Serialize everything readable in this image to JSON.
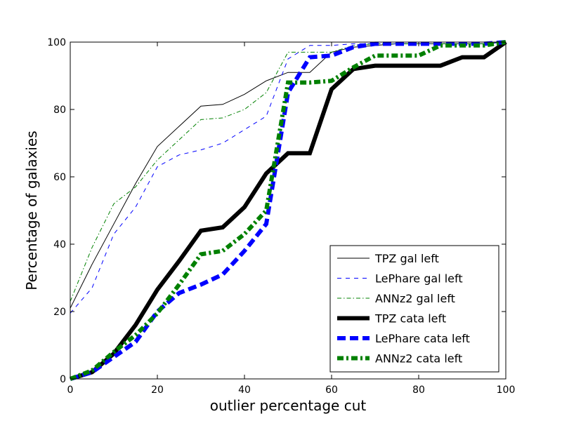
{
  "chart_data": {
    "type": "line",
    "title": "",
    "xlabel": "outlier percentage cut",
    "ylabel": "Percentage of galaxies",
    "xlim": [
      0,
      100
    ],
    "ylim": [
      0,
      100
    ],
    "xticks": [
      0,
      20,
      40,
      60,
      80,
      100
    ],
    "yticks": [
      0,
      20,
      40,
      60,
      80,
      100
    ],
    "grid": false,
    "legend_position": "bottom-right",
    "series": [
      {
        "name": "TPZ gal left",
        "color": "#000000",
        "style": "solid-thin",
        "x": [
          0,
          5,
          10,
          15,
          20,
          25,
          30,
          35,
          40,
          45,
          50,
          55,
          60,
          65,
          70,
          75,
          80,
          85,
          90,
          95,
          100
        ],
        "y": [
          21,
          34,
          46,
          58,
          69,
          75,
          81,
          81.5,
          84.5,
          88.5,
          91,
          91,
          97,
          98.5,
          99,
          99.5,
          99.5,
          99.5,
          99.5,
          99.5,
          100
        ]
      },
      {
        "name": "LePhare gal left",
        "color": "#0000ff",
        "style": "dashed-thin",
        "x": [
          0,
          5,
          10,
          15,
          20,
          25,
          30,
          35,
          40,
          45,
          50,
          55,
          60,
          65,
          70,
          75,
          80,
          85,
          90,
          95,
          100
        ],
        "y": [
          19.5,
          27,
          43,
          51,
          63,
          66.5,
          68,
          70,
          74,
          78,
          95,
          99,
          99,
          99.5,
          99.5,
          99.5,
          99.5,
          99.5,
          99.5,
          99.5,
          100
        ]
      },
      {
        "name": "ANNz2 gal left",
        "color": "#008000",
        "style": "dashdot-thin",
        "x": [
          0,
          5,
          10,
          15,
          20,
          25,
          30,
          35,
          40,
          45,
          50,
          55,
          60,
          65,
          70,
          75,
          80,
          85,
          90,
          95,
          100
        ],
        "y": [
          23,
          39,
          52,
          57,
          65,
          71,
          77,
          77.5,
          80,
          85,
          97,
          97,
          97,
          99,
          99.5,
          99.5,
          99.5,
          99.5,
          99.5,
          99.5,
          100
        ]
      },
      {
        "name": "TPZ cata left",
        "color": "#000000",
        "style": "solid-thick",
        "x": [
          0,
          5,
          10,
          15,
          20,
          25,
          30,
          35,
          40,
          45,
          50,
          55,
          60,
          65,
          70,
          75,
          80,
          85,
          90,
          95,
          100
        ],
        "y": [
          0,
          2,
          7.5,
          16,
          26.5,
          35,
          44,
          45,
          51,
          61,
          67,
          67,
          86,
          92,
          93,
          93,
          93,
          93,
          95.5,
          95.5,
          100
        ]
      },
      {
        "name": "LePhare cata left",
        "color": "#0000ff",
        "style": "dashed-thick",
        "x": [
          0,
          5,
          10,
          15,
          20,
          25,
          30,
          35,
          40,
          45,
          50,
          55,
          60,
          65,
          70,
          75,
          80,
          85,
          90,
          95,
          100
        ],
        "y": [
          0,
          2,
          6.5,
          11,
          20,
          25.5,
          28,
          31,
          38,
          46,
          85,
          95.5,
          96,
          98.5,
          99.5,
          99.5,
          99.5,
          99.5,
          99.5,
          99.5,
          100
        ]
      },
      {
        "name": "ANNz2 cata left",
        "color": "#008000",
        "style": "dashdot-thick",
        "x": [
          0,
          5,
          10,
          15,
          20,
          25,
          30,
          35,
          40,
          45,
          50,
          55,
          60,
          65,
          70,
          75,
          80,
          85,
          90,
          95,
          100
        ],
        "y": [
          0,
          2.5,
          8,
          13,
          19.5,
          28,
          37,
          38,
          43,
          50,
          88,
          88,
          88.5,
          92.5,
          96,
          96,
          96,
          99,
          99,
          99,
          100
        ]
      }
    ]
  }
}
